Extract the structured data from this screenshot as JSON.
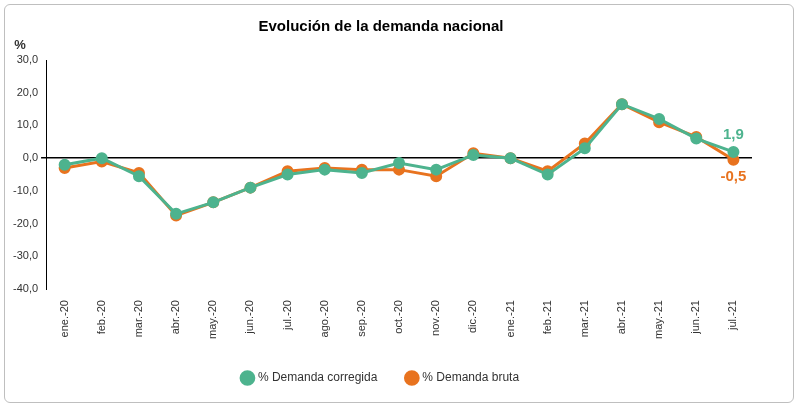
{
  "chart_data": {
    "type": "line",
    "title": "Evolución de la demanda nacional",
    "y_label": "%",
    "categories": [
      "ene.-20",
      "feb.-20",
      "mar.-20",
      "abr.-20",
      "may.-20",
      "jun.-20",
      "jul.-20",
      "ago.-20",
      "sep.-20",
      "oct.-20",
      "nov.-20",
      "dic.-20",
      "ene.-21",
      "feb.-21",
      "mar.-21",
      "abr.-21",
      "may.-21",
      "jun.-21",
      "jul.-21"
    ],
    "series": [
      {
        "name": "% Demanda corregida",
        "color": "#4db38e",
        "marker": "circle",
        "values": [
          -2,
          0,
          -5.5,
          -17,
          -13.5,
          -9,
          -5,
          -3.5,
          -4.5,
          -1.5,
          -3.5,
          1,
          0,
          -5,
          3,
          16.5,
          12,
          6,
          1.9
        ],
        "value_labels": [
          null,
          null,
          null,
          null,
          null,
          null,
          null,
          null,
          null,
          null,
          null,
          null,
          null,
          null,
          null,
          null,
          null,
          null,
          "1,9"
        ]
      },
      {
        "name": "% Demanda bruta",
        "color": "#e8731f",
        "marker": "circle",
        "values": [
          -3,
          -1,
          -4.5,
          -17.5,
          -13.5,
          -9,
          -4,
          -3,
          -3.5,
          -3.5,
          -5.5,
          1.5,
          0,
          -4,
          4.5,
          16.5,
          11,
          6.5,
          -0.5
        ],
        "value_labels": [
          null,
          null,
          null,
          null,
          null,
          null,
          null,
          null,
          null,
          null,
          null,
          null,
          null,
          null,
          null,
          null,
          null,
          null,
          "-0,5"
        ]
      }
    ],
    "ylim": [
      -40,
      30
    ],
    "yticks": [
      {
        "value": -40,
        "label": "-40,0"
      },
      {
        "value": -30,
        "label": "-30,0"
      },
      {
        "value": -20,
        "label": "-20,0"
      },
      {
        "value": -10,
        "label": "-10,0"
      },
      {
        "value": 0,
        "label": "0,0"
      },
      {
        "value": 10,
        "label": "10,0"
      },
      {
        "value": 20,
        "label": "20,0"
      },
      {
        "value": 30,
        "label": "30,0"
      }
    ],
    "grid": false,
    "legend": "bottom",
    "data_labels": true
  }
}
